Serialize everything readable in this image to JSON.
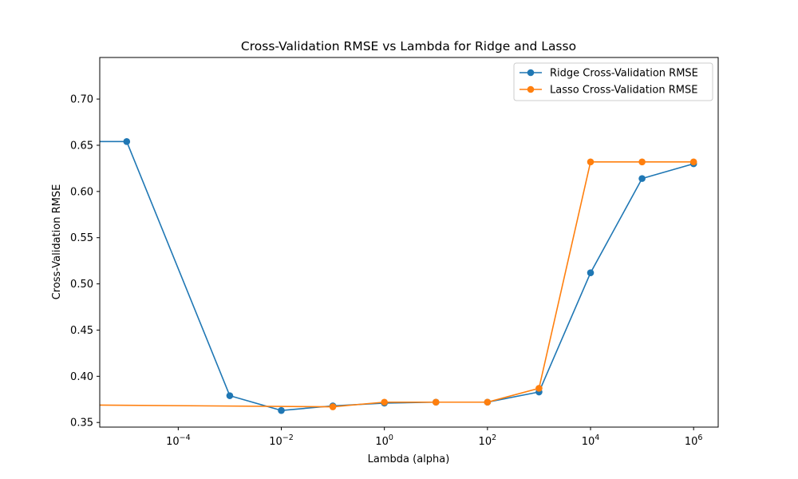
{
  "chart_data": {
    "type": "line",
    "title": "Cross-Validation RMSE vs Lambda for Ridge and Lasso",
    "xlabel": "Lambda (alpha)",
    "ylabel": "Cross-Validation RMSE",
    "xscale": "log",
    "xlim": [
      3e-06,
      3000000.0
    ],
    "ylim": [
      0.345,
      0.745
    ],
    "grid": false,
    "legend_position": "top-right",
    "x_ticks": [
      {
        "value": 0.0001,
        "base": "10",
        "exp": "−4"
      },
      {
        "value": 0.01,
        "base": "10",
        "exp": "−2"
      },
      {
        "value": 1,
        "base": "10",
        "exp": "0"
      },
      {
        "value": 100,
        "base": "10",
        "exp": "2"
      },
      {
        "value": 10000,
        "base": "10",
        "exp": "4"
      },
      {
        "value": 1000000,
        "base": "10",
        "exp": "6"
      }
    ],
    "y_ticks": [
      {
        "value": 0.35,
        "label": "0.35"
      },
      {
        "value": 0.4,
        "label": "0.40"
      },
      {
        "value": 0.45,
        "label": "0.45"
      },
      {
        "value": 0.5,
        "label": "0.50"
      },
      {
        "value": 0.55,
        "label": "0.55"
      },
      {
        "value": 0.6,
        "label": "0.60"
      },
      {
        "value": 0.65,
        "label": "0.65"
      },
      {
        "value": 0.7,
        "label": "0.70"
      }
    ],
    "series": [
      {
        "name": "Ridge Cross-Validation RMSE",
        "color": "#1f77b4",
        "x": [
          1e-06,
          1e-05,
          0.001,
          0.01,
          0.1,
          1,
          10,
          100,
          1000,
          10000,
          100000,
          1000000
        ],
        "y": [
          0.654,
          0.654,
          0.379,
          0.363,
          0.368,
          0.371,
          0.372,
          0.372,
          0.383,
          0.512,
          0.614,
          0.63
        ],
        "markers_visible_from_index": 1
      },
      {
        "name": "Lasso Cross-Validation RMSE",
        "color": "#ff7f0e",
        "x": [
          1e-06,
          0.1,
          1,
          10,
          100,
          1000,
          10000,
          100000,
          1000000
        ],
        "y": [
          0.369,
          0.367,
          0.372,
          0.372,
          0.372,
          0.387,
          0.632,
          0.632,
          0.632
        ],
        "markers_visible_from_index": 1
      }
    ]
  }
}
